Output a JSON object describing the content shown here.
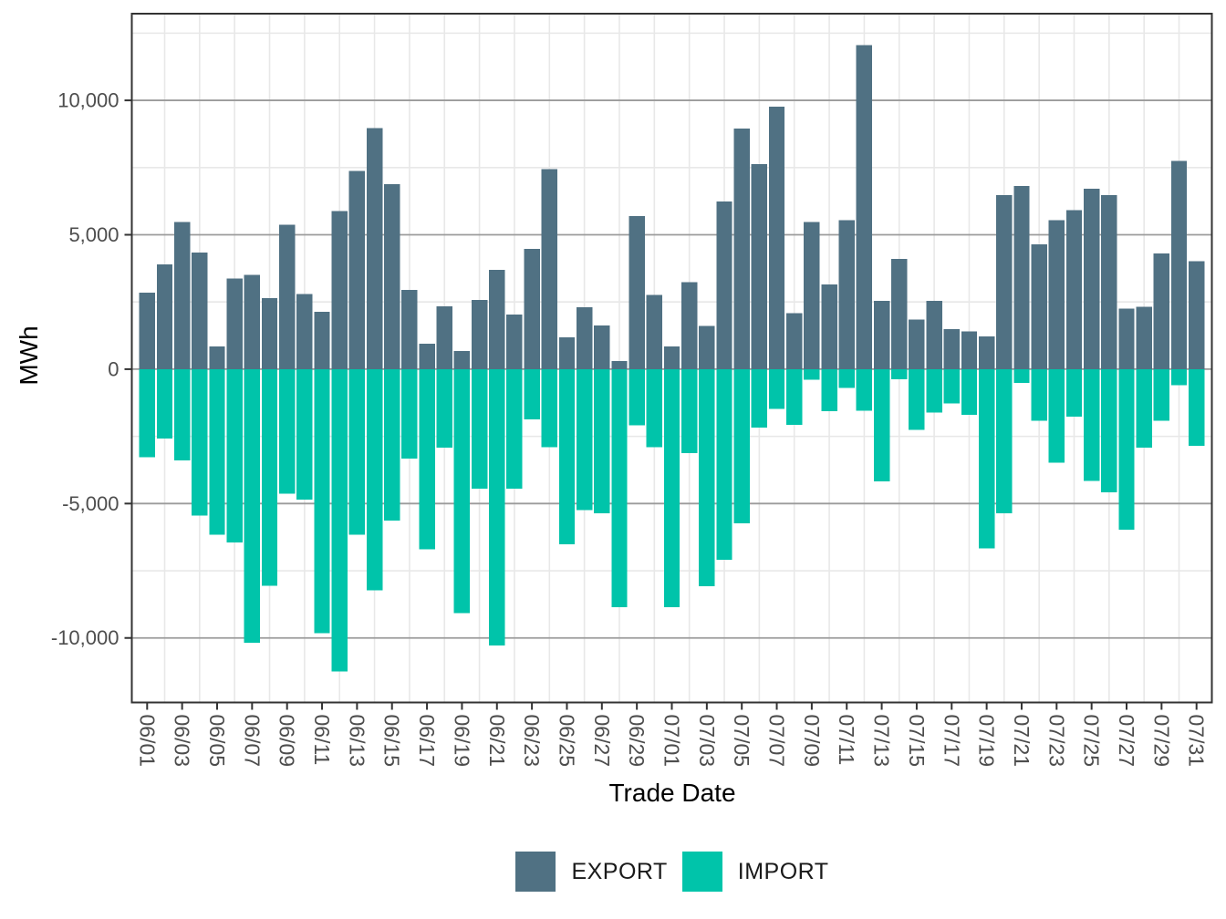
{
  "chart_data": {
    "type": "bar",
    "subtype": "diverging-vertical",
    "title": "",
    "xlabel": "Trade Date",
    "ylabel": "MWh",
    "grid": true,
    "legend_position": "bottom",
    "ylim": [
      -12400,
      13225
    ],
    "categories": [
      "06/01",
      "06/02",
      "06/03",
      "06/04",
      "06/05",
      "06/06",
      "06/07",
      "06/08",
      "06/09",
      "06/10",
      "06/11",
      "06/12",
      "06/13",
      "06/14",
      "06/15",
      "06/16",
      "06/17",
      "06/18",
      "06/19",
      "06/20",
      "06/21",
      "06/22",
      "06/23",
      "06/24",
      "06/25",
      "06/26",
      "06/27",
      "06/28",
      "06/29",
      "06/30",
      "07/01",
      "07/02",
      "07/03",
      "07/04",
      "07/05",
      "07/06",
      "07/07",
      "07/08",
      "07/09",
      "07/10",
      "07/11",
      "07/12",
      "07/13",
      "07/14",
      "07/15",
      "07/16",
      "07/17",
      "07/18",
      "07/19",
      "07/20",
      "07/21",
      "07/22",
      "07/23",
      "07/24",
      "07/25",
      "07/26",
      "07/27",
      "07/28",
      "07/29",
      "07/30",
      "07/31"
    ],
    "x_tick_labels": [
      "06/01",
      "06/03",
      "06/05",
      "06/07",
      "06/09",
      "06/11",
      "06/13",
      "06/15",
      "06/17",
      "06/19",
      "06/21",
      "06/23",
      "06/25",
      "06/27",
      "06/29",
      "07/01",
      "07/03",
      "07/05",
      "07/07",
      "07/09",
      "07/11",
      "07/13",
      "07/15",
      "07/17",
      "07/19",
      "07/21",
      "07/23",
      "07/25",
      "07/27",
      "07/29",
      "07/31"
    ],
    "y_ticks": [
      {
        "value": 10000,
        "label": "10,000"
      },
      {
        "value": 5000,
        "label": "5,000"
      },
      {
        "value": 0,
        "label": "0"
      },
      {
        "value": -5000,
        "label": "-5,000"
      },
      {
        "value": -10000,
        "label": "-10,000"
      }
    ],
    "y_minor_ticks": [
      12500,
      7500,
      2500,
      -2500,
      -7500
    ],
    "series": [
      {
        "name": "EXPORT",
        "color": "#507183",
        "values": [
          2850,
          3890,
          5470,
          4340,
          840,
          3380,
          3510,
          2650,
          5370,
          2790,
          2130,
          5880,
          7370,
          8960,
          6890,
          2940,
          940,
          2340,
          680,
          2570,
          3700,
          2030,
          4480,
          7450,
          1190,
          2310,
          1630,
          300,
          5700,
          2760,
          840,
          3240,
          1600,
          6240,
          8950,
          7630,
          9770,
          2080,
          5480,
          3150,
          5540,
          12050,
          2540,
          4100,
          1840,
          2540,
          1490,
          1410,
          1210,
          6470,
          6820,
          4640,
          5540,
          5910,
          6720,
          6470,
          2260,
          2320,
          4300,
          7740,
          4010
        ]
      },
      {
        "name": "IMPORT",
        "color": "#00C4AA",
        "values": [
          -3280,
          -2580,
          -3390,
          -5450,
          -6160,
          -6440,
          -10170,
          -8050,
          -4630,
          -4860,
          -9830,
          -11240,
          -6160,
          -8230,
          -5630,
          -3330,
          -6700,
          -2915,
          -9070,
          -4440,
          -10280,
          -4440,
          -1860,
          -2900,
          -6520,
          -5250,
          -5370,
          -8850,
          -2090,
          -2900,
          -8850,
          -3130,
          -8080,
          -7100,
          -5730,
          -2180,
          -1470,
          -2070,
          -400,
          -1560,
          -700,
          -1550,
          -4180,
          -370,
          -2260,
          -1620,
          -1280,
          -1700,
          -6670,
          -5370,
          -510,
          -1920,
          -3480,
          -1770,
          -4160,
          -4580,
          -5970,
          -2920,
          -1920,
          -600,
          -2860
        ]
      }
    ]
  },
  "legend": {
    "items": [
      {
        "label": "EXPORT",
        "color": "#507183"
      },
      {
        "label": "IMPORT",
        "color": "#00C4AA"
      }
    ]
  }
}
